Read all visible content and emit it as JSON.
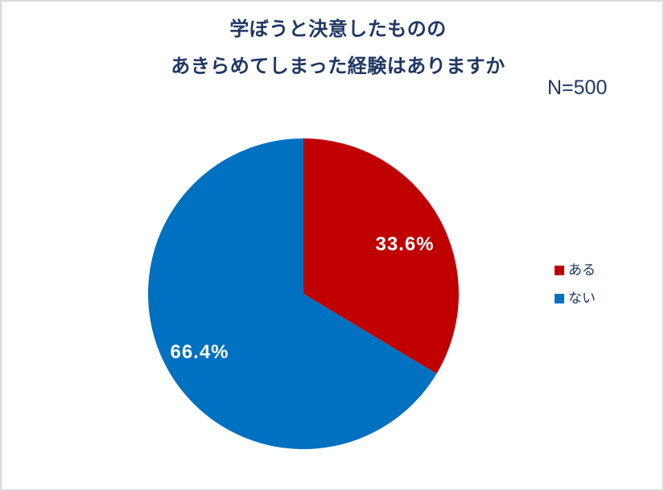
{
  "frame": {
    "background": "#FFFFFF",
    "border_color": "#D9D9D9"
  },
  "header": {
    "title_line1": "学ぼうと決意したものの",
    "title_line2": "あきらめてしまった経験はありますか",
    "title_color": "#1F3864",
    "sample_size": "N=500"
  },
  "chart_data": {
    "type": "pie",
    "title": "学ぼうと決意したもののあきらめてしまった経験はありますか",
    "sample_size": "N=500",
    "start_angle_deg": 0,
    "direction": "clockwise",
    "legend_position": "right",
    "data_label_color": "#FFFFFF",
    "slices": [
      {
        "label": "ある",
        "value": 33.6,
        "display": "33.6%",
        "color": "#C00000"
      },
      {
        "label": "ない",
        "value": 66.4,
        "display": "66.4%",
        "color": "#0070C0"
      }
    ]
  }
}
